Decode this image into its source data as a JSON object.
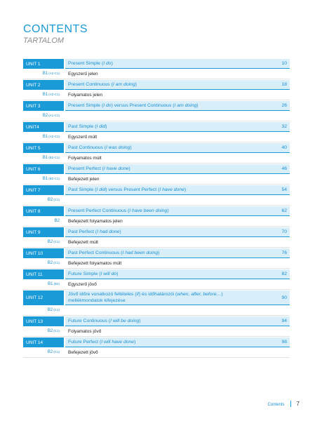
{
  "header": {
    "title": "CONTENTS",
    "subtitle": "TARTALOM"
  },
  "units": [
    {
      "label": "UNIT 1",
      "title": [
        {
          "text": "Present Simple ("
        },
        {
          "text": "I do",
          "italic": true
        },
        {
          "text": ")"
        }
      ],
      "page": 10,
      "level": "B1",
      "range": "(A2-C1)",
      "hu": "Egyszerű jelen"
    },
    {
      "label": "UNIT 2",
      "title": [
        {
          "text": "Present Continuous ("
        },
        {
          "text": "I am doing",
          "italic": true
        },
        {
          "text": ")"
        }
      ],
      "page": 18,
      "level": "B1",
      "range": "(A2-C1)",
      "hu": "Folyamatos jelen"
    },
    {
      "label": "UNIT 3",
      "title": [
        {
          "text": "Present Simple ("
        },
        {
          "text": "I do",
          "italic": true
        },
        {
          "text": ") versus Present Continuous ("
        },
        {
          "text": "I am doing",
          "italic": true
        },
        {
          "text": ")"
        }
      ],
      "page": 26,
      "level": "B2",
      "range": "(A1-C1)"
    },
    {
      "label": "UNIT4",
      "title": [
        {
          "text": "Past Simple ("
        },
        {
          "text": "I did",
          "italic": true
        },
        {
          "text": ")"
        }
      ],
      "page": 32,
      "level": "B1",
      "range": "(A2-C1)",
      "hu": "Egyszerű múlt"
    },
    {
      "label": "UNIT 5",
      "title": [
        {
          "text": "Past Continuous ("
        },
        {
          "text": "I was doing",
          "italic": true
        },
        {
          "text": ")"
        }
      ],
      "page": 40,
      "level": "B1",
      "range": "(B2-C1)",
      "hu": "Folyamatos múlt"
    },
    {
      "label": "UNIT 6",
      "title": [
        {
          "text": "Present Perfect ("
        },
        {
          "text": "I have done",
          "italic": true
        },
        {
          "text": ")"
        }
      ],
      "page": 46,
      "level": "B1",
      "range": "(B2-C1)",
      "hu": "Befejezett jelen"
    },
    {
      "label": "UNIT 7",
      "title": [
        {
          "text": "Past Simple ("
        },
        {
          "text": "I did",
          "italic": true
        },
        {
          "text": ") versus Present Perfect ("
        },
        {
          "text": "I have done",
          "italic": true
        },
        {
          "text": ")"
        }
      ],
      "page": 54,
      "level": "B2",
      "range": "(C1)"
    },
    {
      "label": "UNIT 8",
      "title": [
        {
          "text": "Present Perfect Continuous ("
        },
        {
          "text": "I have been doing",
          "italic": true
        },
        {
          "text": ")"
        }
      ],
      "page": 62,
      "level": "B2",
      "hu": "Befejezett folyamatos jelen"
    },
    {
      "label": "UNIT 9",
      "title": [
        {
          "text": "Past Perfect ("
        },
        {
          "text": "I had done",
          "italic": true
        },
        {
          "text": ")"
        }
      ],
      "page": 70,
      "level": "B2",
      "range": "(C1)",
      "hu": "Befejezett múlt"
    },
    {
      "label": "UNIT 10",
      "title": [
        {
          "text": "Past Perfect Continuous ("
        },
        {
          "text": "I had been doing",
          "italic": true
        },
        {
          "text": ")"
        }
      ],
      "page": 76,
      "level": "B2",
      "range": "(C1)",
      "hu": "Befejezett folyamatos múlt"
    },
    {
      "label": "UNIT 11",
      "title": [
        {
          "text": "Future Simple ("
        },
        {
          "text": "I will do",
          "italic": true
        },
        {
          "text": ")"
        }
      ],
      "page": 82,
      "level": "B1",
      "range": "(B2)",
      "hu": "Egyszerű jövő"
    },
    {
      "label": "UNIT 12",
      "title": [
        {
          "text": "Jövő időre vonatkozó feltételes ("
        },
        {
          "text": "if",
          "italic": true
        },
        {
          "text": ") és időhatározói ("
        },
        {
          "text": "when, after, before…",
          "italic": true
        },
        {
          "text": ") mellékmondatok kifejezése"
        }
      ],
      "page": 90,
      "level": "B2",
      "range": "(C1)"
    },
    {
      "label": "UNIT 13",
      "title": [
        {
          "text": "Future Continuous ("
        },
        {
          "text": "I will be doing",
          "italic": true
        },
        {
          "text": ")"
        }
      ],
      "page": 94,
      "level": "B2",
      "range": "(C1)",
      "hu": "Folyamatos jövő"
    },
    {
      "label": "UNIT 14",
      "title": [
        {
          "text": "Future Perfect ("
        },
        {
          "text": "I will have done",
          "italic": true
        },
        {
          "text": ")"
        }
      ],
      "page": 98,
      "level": "B2",
      "range": "(C1)",
      "hu": "Befejezett jövő"
    }
  ],
  "footer": {
    "section": "Contents",
    "page": 7
  }
}
